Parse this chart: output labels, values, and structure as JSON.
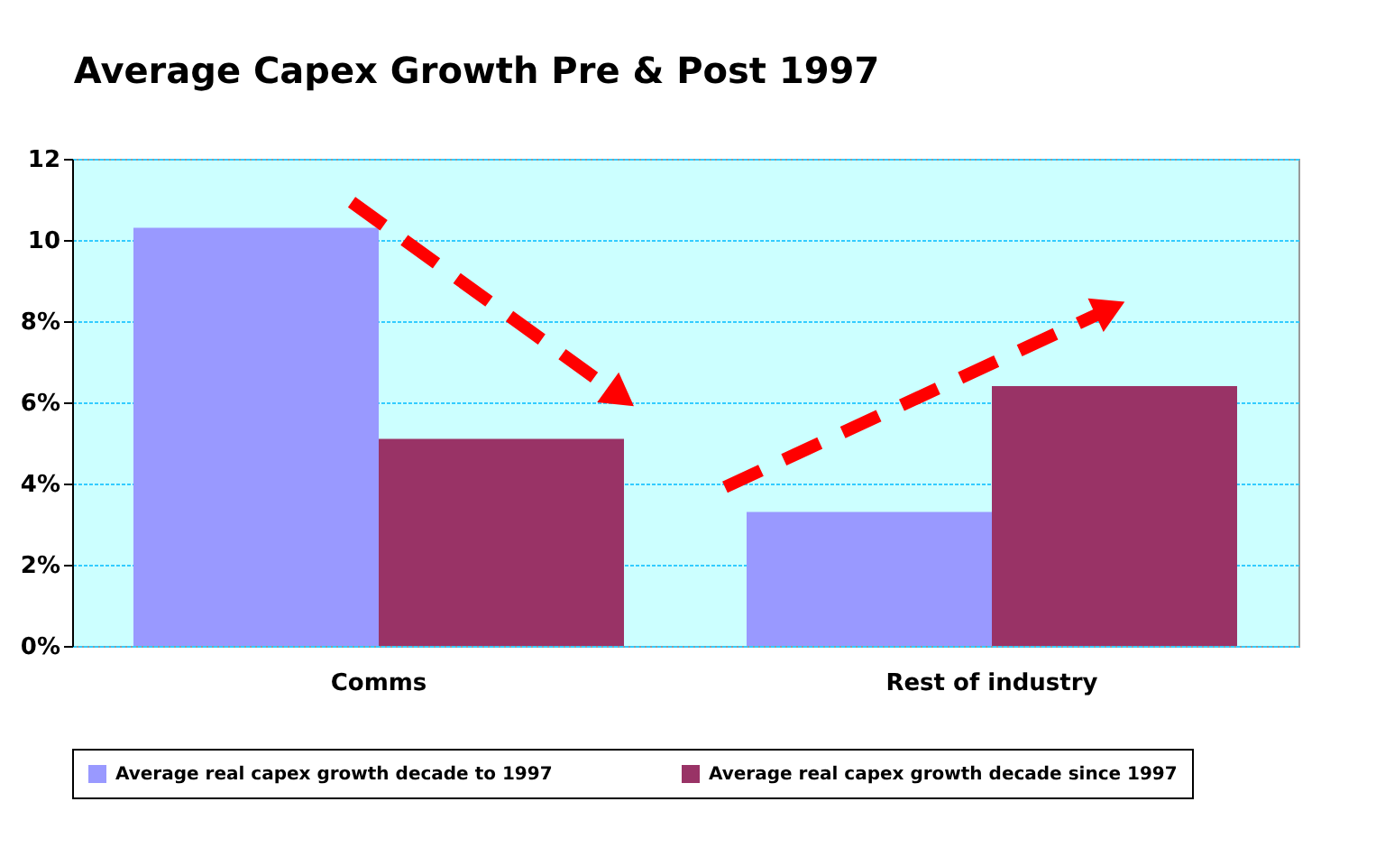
{
  "chart_data": {
    "type": "bar",
    "title": "Average Capex Growth Pre & Post 1997",
    "categories": [
      "Comms",
      "Rest of industry"
    ],
    "series": [
      {
        "name": "Average real capex growth decade to 1997",
        "color": "#9999ff",
        "values": [
          10.3,
          3.3
        ]
      },
      {
        "name": "Average real capex growth decade since 1997",
        "color": "#993366",
        "values": [
          5.1,
          6.4
        ]
      }
    ],
    "ylim": [
      0,
      12
    ],
    "yticks": [
      {
        "value": 0,
        "label": "0%"
      },
      {
        "value": 2,
        "label": "2%"
      },
      {
        "value": 4,
        "label": "4%"
      },
      {
        "value": 6,
        "label": "6%"
      },
      {
        "value": 8,
        "label": "8%"
      },
      10,
      12
    ],
    "grid": "y",
    "legend": "bottom"
  }
}
